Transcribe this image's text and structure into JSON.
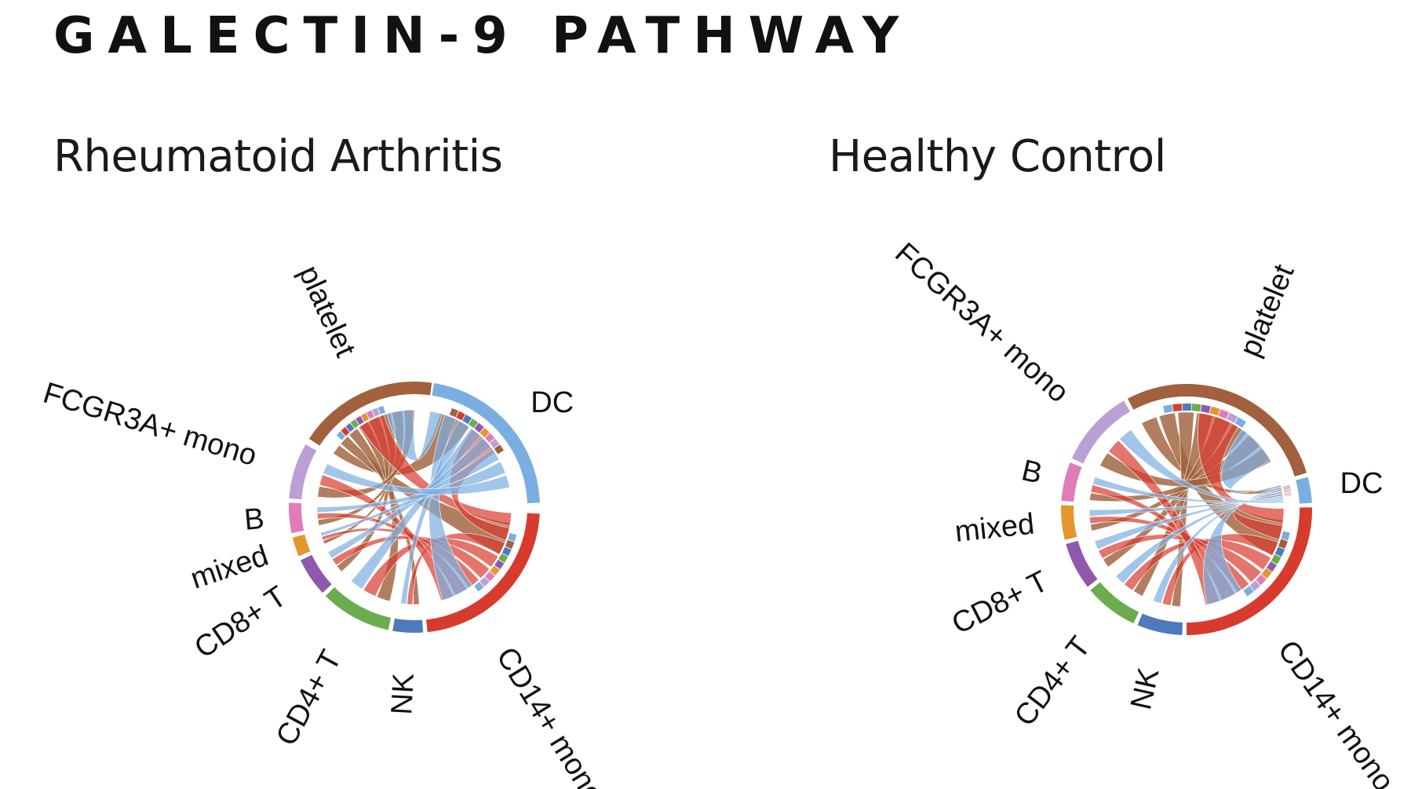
{
  "slide": {
    "title": "GALECTIN-9 PATHWAY"
  },
  "panels": [
    {
      "id": "ra",
      "title": "Rheumatoid Arthritis",
      "groups": [
        {
          "name": "platelet",
          "color": "#a0613c",
          "start": 303,
          "end": 368
        },
        {
          "name": "DC",
          "color": "#7aaee0",
          "start": 9,
          "end": 88
        },
        {
          "name": "CD14+ mono",
          "color": "#d73b2e",
          "start": 93,
          "end": 174
        },
        {
          "name": "NK",
          "color": "#4f79bd",
          "start": 176,
          "end": 190
        },
        {
          "name": "CD4+ T",
          "color": "#6aac4e",
          "start": 192,
          "end": 225
        },
        {
          "name": "CD8+ T",
          "color": "#9058ac",
          "start": 227,
          "end": 245
        },
        {
          "name": "mixed",
          "color": "#e3962e",
          "start": 247,
          "end": 256
        },
        {
          "name": "B",
          "color": "#e07cb8",
          "start": 258,
          "end": 272
        },
        {
          "name": "FCGR3A+ mono",
          "color": "#bba0d6",
          "start": 274,
          "end": 300
        }
      ]
    },
    {
      "id": "hc",
      "title": "Healthy Control",
      "groups": [
        {
          "name": "platelet",
          "color": "#a0613c",
          "start": 332,
          "end": 433
        },
        {
          "name": "DC",
          "color": "#7aaee0",
          "start": 75,
          "end": 87
        },
        {
          "name": "CD14+ mono",
          "color": "#d73b2e",
          "start": 89,
          "end": 180
        },
        {
          "name": "NK",
          "color": "#4f79bd",
          "start": 182,
          "end": 203
        },
        {
          "name": "CD4+ T",
          "color": "#6aac4e",
          "start": 205,
          "end": 230
        },
        {
          "name": "CD8+ T",
          "color": "#9058ac",
          "start": 232,
          "end": 254
        },
        {
          "name": "mixed",
          "color": "#e3962e",
          "start": 256,
          "end": 272
        },
        {
          "name": "B",
          "color": "#e07cb8",
          "start": 274,
          "end": 292
        },
        {
          "name": "FCGR3A+ mono",
          "color": "#bba0d6",
          "start": 294,
          "end": 330
        }
      ]
    }
  ]
}
